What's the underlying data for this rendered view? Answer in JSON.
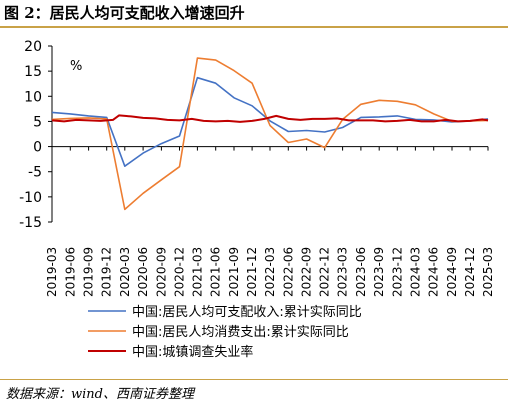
{
  "figure_title": "图 2：居民人均可支配收入增速回升",
  "source_note": "数据来源：wind、西南证券整理",
  "chart_data": {
    "type": "line",
    "unit_label": "%",
    "ylim": [
      -15,
      20
    ],
    "yticks": [
      -15,
      -10,
      -5,
      0,
      5,
      10,
      15,
      20
    ],
    "x": [
      "2019-03",
      "2019-06",
      "2019-09",
      "2019-12",
      "2020-03",
      "2020-06",
      "2020-09",
      "2020-12",
      "2021-03",
      "2021-06",
      "2021-09",
      "2021-12",
      "2022-03",
      "2022-06",
      "2022-09",
      "2022-12",
      "2023-03",
      "2023-06",
      "2023-09",
      "2023-12",
      "2024-03",
      "2024-06",
      "2024-09",
      "2024-12",
      "2025-03"
    ],
    "grid": false,
    "legend_position": "bottom",
    "series": [
      {
        "name": "中国:居民人均可支配收入:累计实际同比",
        "color": "#4472c4",
        "x": [
          "2019-03",
          "2019-06",
          "2019-09",
          "2019-12",
          "2020-03",
          "2020-06",
          "2020-09",
          "2020-12",
          "2021-03",
          "2021-06",
          "2021-09",
          "2021-12",
          "2022-03",
          "2022-06",
          "2022-09",
          "2022-12",
          "2023-03",
          "2023-06",
          "2023-09",
          "2023-12",
          "2024-03",
          "2024-06",
          "2024-09",
          "2024-12",
          "2025-03"
        ],
        "values": [
          6.8,
          6.5,
          6.1,
          5.8,
          -3.9,
          -1.3,
          0.6,
          2.1,
          13.7,
          12.6,
          9.7,
          8.1,
          5.1,
          3.0,
          3.2,
          2.9,
          3.8,
          5.8,
          5.9,
          6.1,
          5.4,
          5.3,
          4.9,
          5.1,
          5.5
        ]
      },
      {
        "name": "中国:居民人均消费支出:累计实际同比",
        "color": "#ed7d31",
        "x": [
          "2019-03",
          "2019-06",
          "2019-09",
          "2019-12",
          "2020-03",
          "2020-06",
          "2020-09",
          "2020-12",
          "2021-03",
          "2021-06",
          "2021-09",
          "2021-12",
          "2022-03",
          "2022-06",
          "2022-09",
          "2022-12",
          "2023-03",
          "2023-06",
          "2023-09",
          "2023-12",
          "2024-03",
          "2024-06",
          "2024-09",
          "2024-12",
          "2025-03"
        ],
        "values": [
          5.4,
          5.6,
          5.7,
          5.5,
          -12.5,
          -9.3,
          -6.6,
          -4.0,
          17.6,
          17.2,
          15.1,
          12.6,
          4.2,
          0.8,
          1.5,
          -0.2,
          5.4,
          8.4,
          9.2,
          9.0,
          8.3,
          6.5,
          5.0,
          5.1,
          5.2
        ]
      },
      {
        "name": "中国:城镇调查失业率",
        "color": "#c00000",
        "x": [
          "2019-03",
          "2019-05",
          "2019-07",
          "2019-09",
          "2019-11",
          "2020-01",
          "2020-02",
          "2020-04",
          "2020-06",
          "2020-08",
          "2020-10",
          "2020-12",
          "2021-02",
          "2021-04",
          "2021-06",
          "2021-08",
          "2021-10",
          "2021-12",
          "2022-02",
          "2022-04",
          "2022-06",
          "2022-08",
          "2022-10",
          "2022-12",
          "2023-02",
          "2023-04",
          "2023-06",
          "2023-08",
          "2023-10",
          "2023-12",
          "2024-02",
          "2024-04",
          "2024-06",
          "2024-08",
          "2024-10",
          "2024-12",
          "2025-02",
          "2025-03"
        ],
        "values": [
          5.2,
          5.0,
          5.3,
          5.2,
          5.1,
          5.3,
          6.2,
          6.0,
          5.7,
          5.6,
          5.3,
          5.2,
          5.5,
          5.1,
          5.0,
          5.1,
          4.9,
          5.1,
          5.5,
          6.1,
          5.5,
          5.3,
          5.5,
          5.5,
          5.6,
          5.2,
          5.2,
          5.2,
          5.0,
          5.1,
          5.3,
          5.0,
          5.0,
          5.3,
          5.0,
          5.1,
          5.4,
          5.2
        ]
      }
    ]
  }
}
